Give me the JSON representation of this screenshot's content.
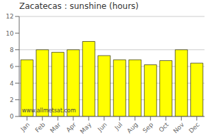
{
  "chart_data": {
    "type": "bar",
    "title": "Zacatecas : sunshine (hours)",
    "categories": [
      "Jan",
      "Feb",
      "Mar",
      "Apr",
      "May",
      "Jun",
      "Jul",
      "Aug",
      "Sep",
      "Oct",
      "Nov",
      "Dec"
    ],
    "values": [
      6.8,
      8.0,
      7.7,
      8.0,
      9.0,
      7.3,
      6.8,
      6.8,
      6.2,
      6.7,
      8.0,
      6.4
    ],
    "color": "#ffff00",
    "ylim": [
      0,
      12
    ],
    "yticks": [
      0,
      2,
      4,
      6,
      8,
      10,
      12
    ],
    "grid": true,
    "annotations": [
      "www.allmetsat.com"
    ]
  }
}
